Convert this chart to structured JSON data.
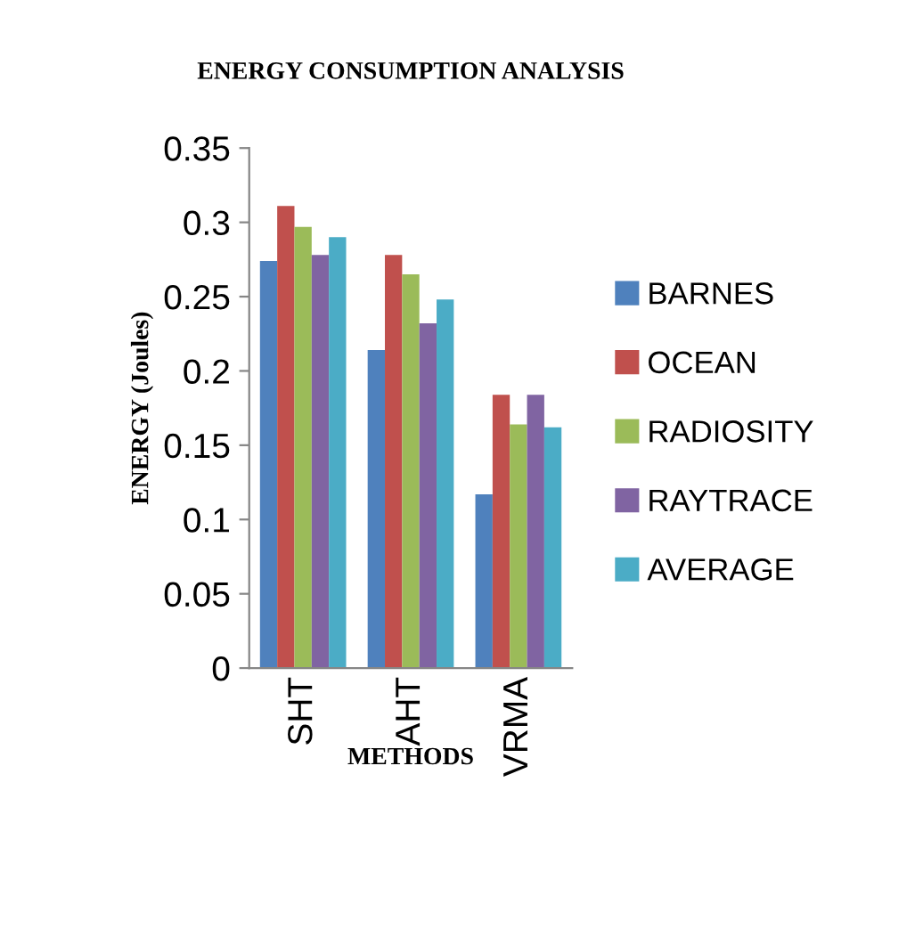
{
  "chart_data": {
    "type": "bar",
    "title": "ENERGY CONSUMPTION ANALYSIS",
    "xlabel": "METHODS",
    "ylabel": "ENERGY (Joules)",
    "categories": [
      "SHT",
      "AHT",
      "VRMA"
    ],
    "series": [
      {
        "name": "BARNES",
        "color": "#4f81bd",
        "values": [
          0.274,
          0.214,
          0.117
        ]
      },
      {
        "name": "OCEAN",
        "color": "#c0504d",
        "values": [
          0.311,
          0.278,
          0.184
        ]
      },
      {
        "name": "RADIOSITY",
        "color": "#9bbb59",
        "values": [
          0.297,
          0.265,
          0.164
        ]
      },
      {
        "name": "RAYTRACE",
        "color": "#8064a2",
        "values": [
          0.278,
          0.232,
          0.184
        ]
      },
      {
        "name": "AVERAGE",
        "color": "#4bacc6",
        "values": [
          0.29,
          0.248,
          0.162
        ]
      }
    ],
    "ylim": [
      0,
      0.35
    ],
    "yticks": [
      0,
      0.05,
      0.1,
      0.15,
      0.2,
      0.25,
      0.3,
      0.35
    ],
    "grid": false,
    "legend": "right"
  }
}
